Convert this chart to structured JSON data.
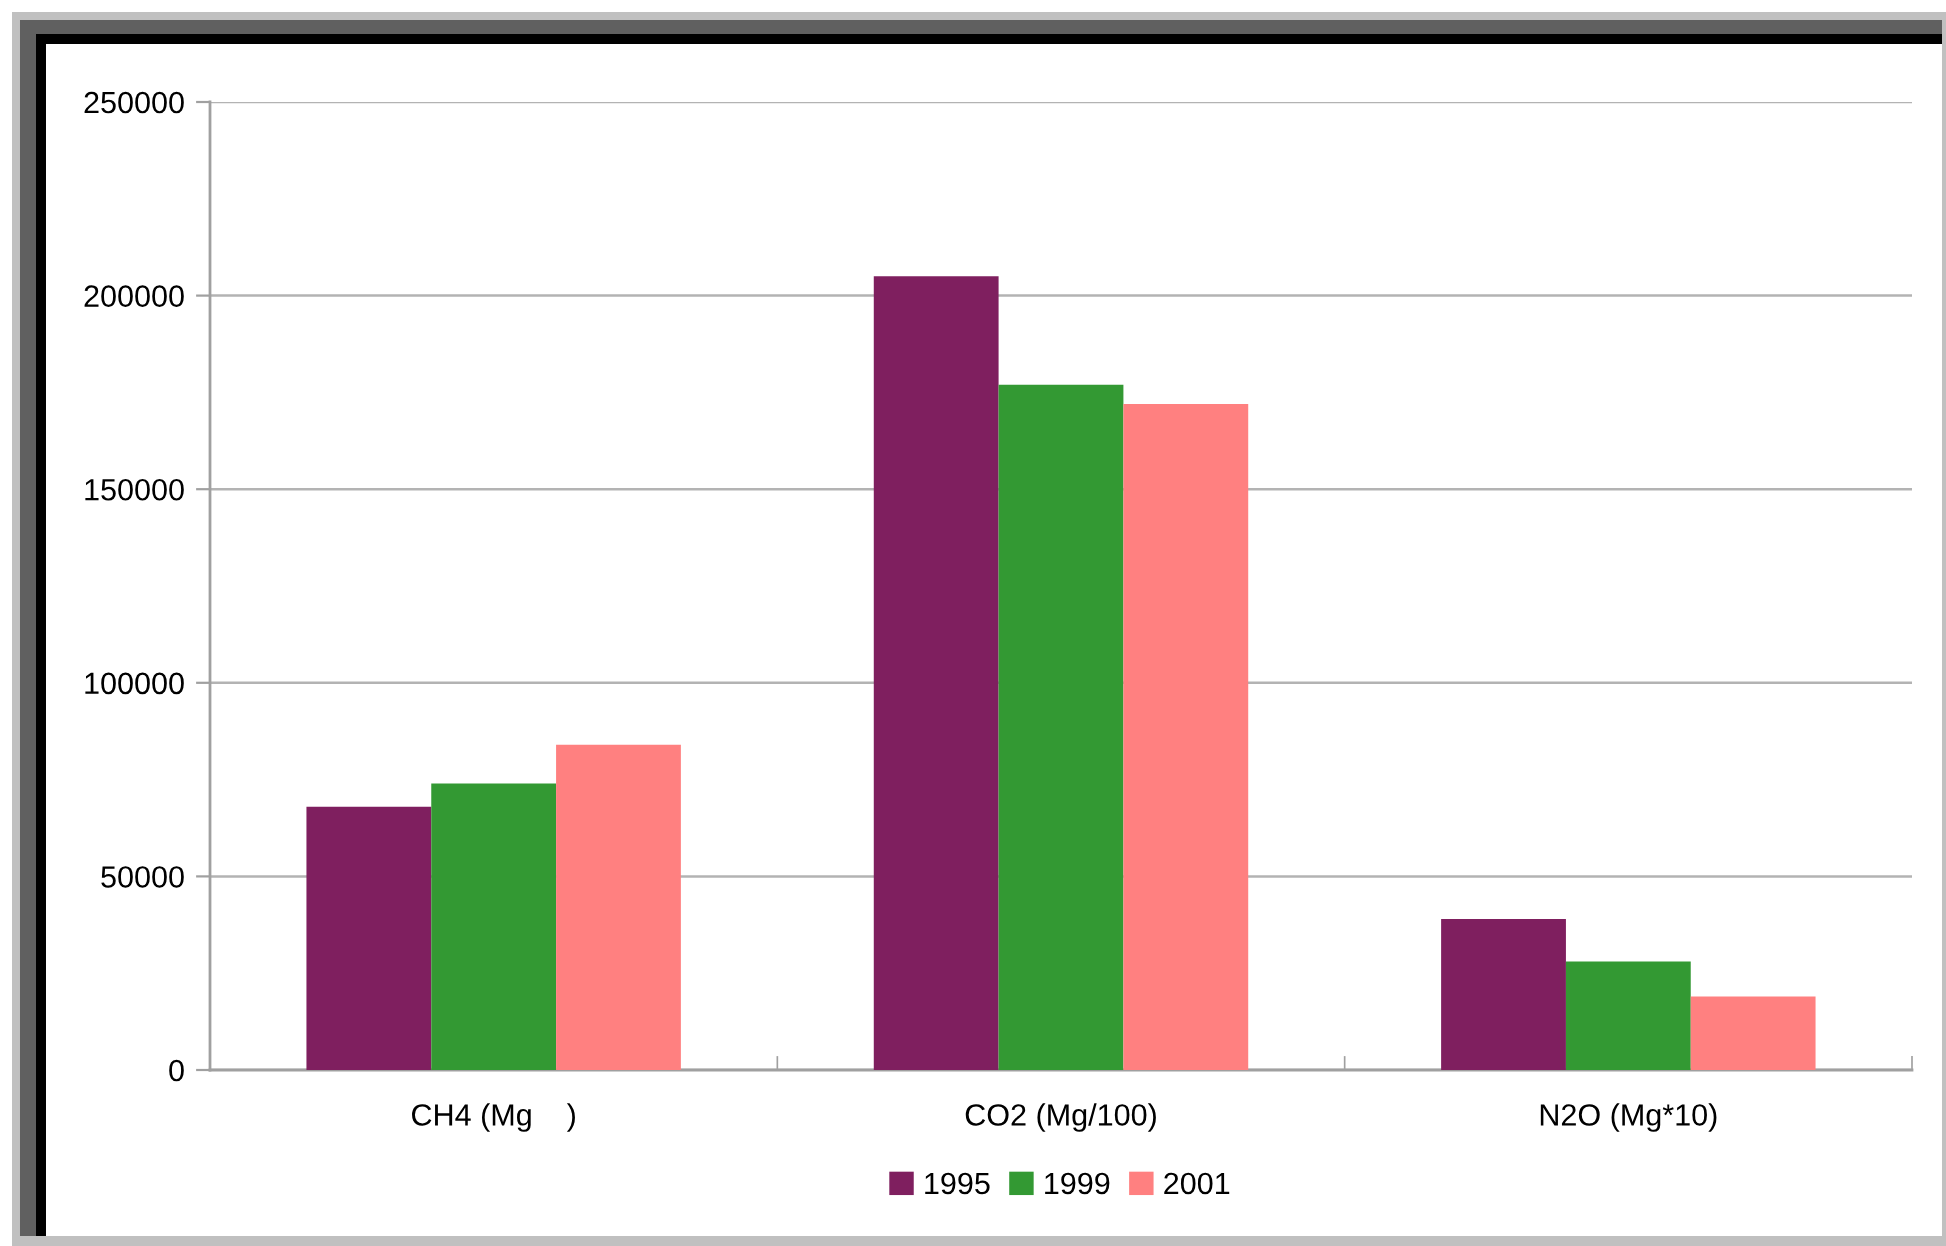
{
  "chart_data": {
    "type": "bar",
    "categories": [
      "CH4 (Mg    )",
      "CO2 (Mg/100)",
      "N2O (Mg*10)"
    ],
    "series": [
      {
        "name": "1995",
        "color": "#7f1f5f",
        "values": [
          68000,
          205000,
          39000
        ]
      },
      {
        "name": "1999",
        "color": "#339933",
        "values": [
          74000,
          177000,
          28000
        ]
      },
      {
        "name": "2001",
        "color": "#ff8080",
        "values": [
          84000,
          172000,
          19000
        ]
      }
    ],
    "ylim": [
      0,
      250000
    ],
    "yticks": [
      0,
      50000,
      100000,
      150000,
      200000,
      250000
    ],
    "grid": "y",
    "legend": "bottom"
  }
}
